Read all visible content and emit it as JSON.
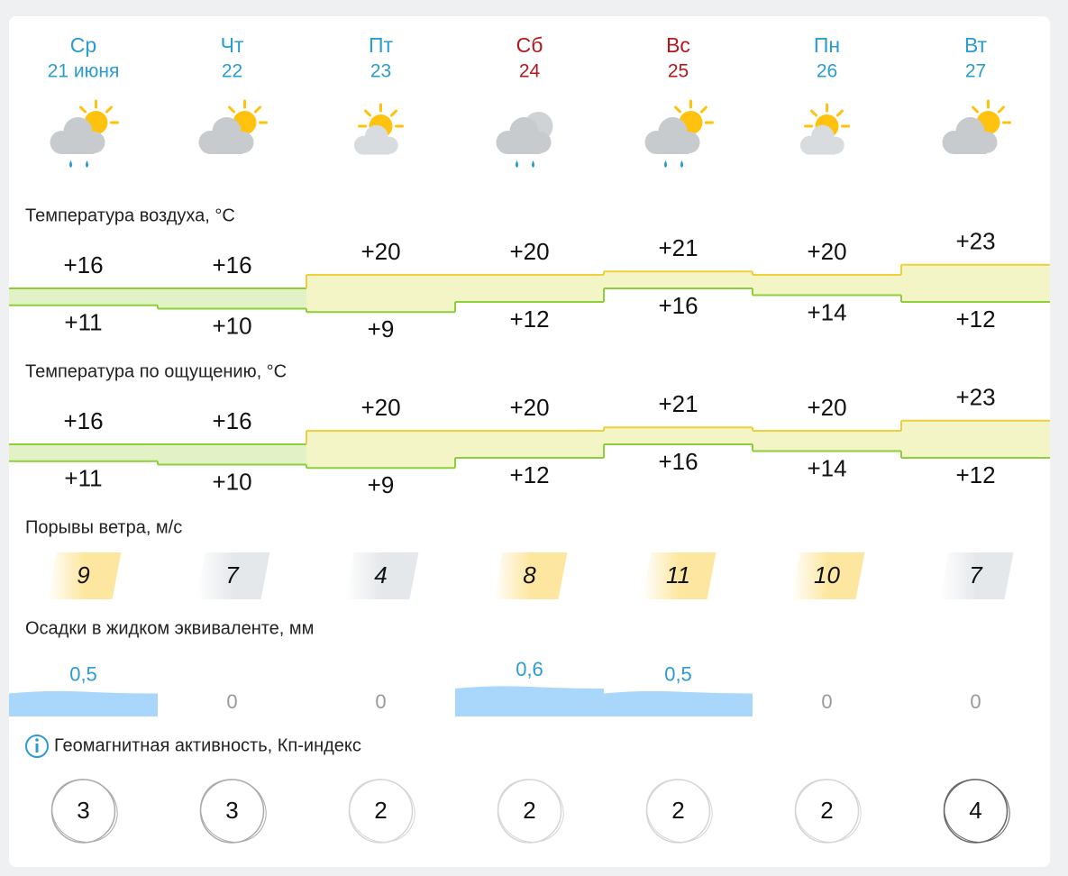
{
  "days": [
    {
      "weekday": "Ср",
      "date": "21 июня",
      "color": "#2b9bd3"
    },
    {
      "weekday": "Чт",
      "date": "22",
      "color": "#2b9bd3"
    },
    {
      "weekday": "Пт",
      "date": "23",
      "color": "#2b9bd3"
    },
    {
      "weekday": "Сб",
      "date": "24",
      "color": "#b3181c"
    },
    {
      "weekday": "Вс",
      "date": "25",
      "color": "#b3181c"
    },
    {
      "weekday": "Пн",
      "date": "26",
      "color": "#2b9bd3"
    },
    {
      "weekday": "Вт",
      "date": "27",
      "color": "#2b9bd3"
    }
  ],
  "air_temperature": {
    "label": "Температура воздуха, °С",
    "max": [
      "+16",
      "+16",
      "+20",
      "+20",
      "+21",
      "+20",
      "+23"
    ],
    "min": [
      "+11",
      "+10",
      "+9",
      "+12",
      "+16",
      "+14",
      "+12"
    ]
  },
  "feels_like": {
    "label": "Температура по ощущению, °С",
    "max": [
      "+16",
      "+16",
      "+20",
      "+20",
      "+21",
      "+20",
      "+23"
    ],
    "min": [
      "+11",
      "+10",
      "+9",
      "+12",
      "+16",
      "+14",
      "+12"
    ]
  },
  "wind_gusts": {
    "label": "Порывы ветра, м/с",
    "values": [
      "9",
      "7",
      "4",
      "8",
      "11",
      "10",
      "7"
    ]
  },
  "precipitation": {
    "label": "Осадки в жидком эквиваленте, мм",
    "values": [
      "0,5",
      "0",
      "0",
      "0,6",
      "0,5",
      "0",
      "0"
    ]
  },
  "geomagnetic": {
    "label": "Геомагнитная активность, Кп-индекс",
    "values": [
      "3",
      "3",
      "2",
      "2",
      "2",
      "2",
      "4"
    ]
  }
}
